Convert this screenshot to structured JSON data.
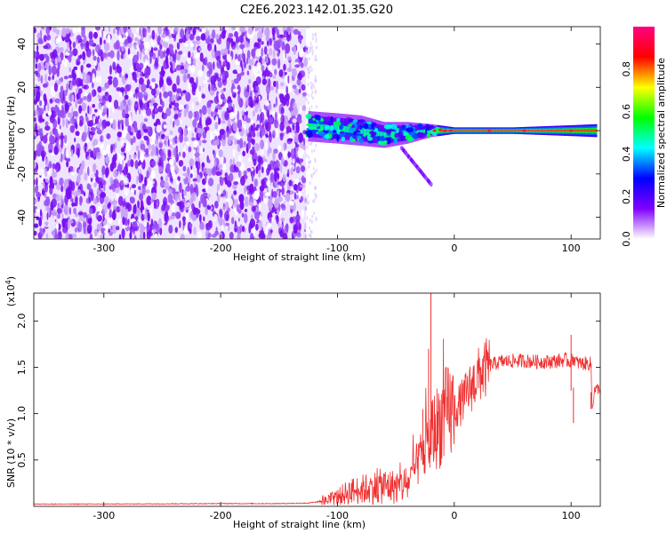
{
  "title": "C2E6.2023.142.01.35.G20",
  "chart_data": [
    {
      "type": "heatmap",
      "xlabel": "Height of straight line (km)",
      "ylabel": "Frequency (Hz)",
      "xlim": [
        -360,
        125
      ],
      "ylim": [
        -50,
        48
      ],
      "xticks": [
        -300,
        -200,
        -100,
        0,
        100
      ],
      "yticks": [
        -40,
        -20,
        0,
        20,
        40
      ],
      "noise_region": {
        "x": [
          -360,
          -127
        ],
        "y": [
          -50,
          48
        ]
      },
      "signal": [
        {
          "x": -125,
          "freq": 2,
          "halfwidth": 7
        },
        {
          "x": -100,
          "freq": 1,
          "halfwidth": 7
        },
        {
          "x": -80,
          "freq": 0,
          "halfwidth": 7
        },
        {
          "x": -60,
          "freq": -2,
          "halfwidth": 6
        },
        {
          "x": -40,
          "freq": -1,
          "halfwidth": 5
        },
        {
          "x": -20,
          "freq": 0,
          "halfwidth": 3
        },
        {
          "x": 0,
          "freq": 0,
          "halfwidth": 1.5
        },
        {
          "x": 50,
          "freq": 0,
          "halfwidth": 1.5
        },
        {
          "x": 100,
          "freq": 0,
          "halfwidth": 2.5
        },
        {
          "x": 122,
          "freq": 0,
          "halfwidth": 3
        }
      ],
      "colorbar": {
        "label": "Normalized spectral amplitude",
        "range": [
          0,
          1
        ],
        "ticks": [
          "0.0",
          "0.2",
          "0.4",
          "0.6",
          "0.8"
        ],
        "tick_values": [
          0.0,
          0.2,
          0.4,
          0.6,
          0.8
        ],
        "stops": [
          "#ffffff",
          "#8000ff",
          "#0000ff",
          "#00ffff",
          "#00ff00",
          "#ffff00",
          "#ff0000",
          "#ff0080"
        ]
      }
    },
    {
      "type": "line",
      "xlabel": "Height of straight line (km)",
      "ylabel": "SNR (10 * v/v)",
      "yscale_label": "(x10",
      "yscale_exponent": "4",
      "yscale_close": ")",
      "xlim": [
        -360,
        125
      ],
      "ylim": [
        0,
        23000
      ],
      "xticks": [
        -300,
        -200,
        -100,
        0,
        100
      ],
      "yticks": [
        5000,
        10000,
        15000,
        20000
      ],
      "ytick_labels": [
        "0.5",
        "1.0",
        "1.5",
        "2.0"
      ],
      "color": "#f03030",
      "x": [
        -360,
        -300,
        -200,
        -150,
        -125,
        -110,
        -100,
        -90,
        -80,
        -70,
        -60,
        -50,
        -40,
        -30,
        -25,
        -20,
        -18,
        -15,
        -10,
        -5,
        0,
        5,
        10,
        20,
        30,
        40,
        50,
        60,
        70,
        80,
        90,
        95,
        100,
        102,
        105,
        110,
        115,
        117,
        118,
        120,
        125
      ],
      "y": [
        250,
        250,
        300,
        300,
        350,
        600,
        1000,
        1600,
        1800,
        2000,
        2200,
        2100,
        2400,
        5000,
        6000,
        7000,
        8000,
        8500,
        9500,
        10000,
        10500,
        11000,
        12000,
        14000,
        15200,
        15600,
        15700,
        15700,
        15600,
        15600,
        15700,
        15800,
        15600,
        16000,
        15500,
        15400,
        15400,
        15400,
        10500,
        12500,
        12800
      ],
      "spikes": [
        {
          "x": -20,
          "y": 23000
        },
        {
          "x": -22,
          "y": 17000
        },
        {
          "x": -27,
          "y": 10500
        },
        {
          "x": 100,
          "y": 18500
        },
        {
          "x": 102,
          "y": 9000
        },
        {
          "x": 117,
          "y": 10500
        }
      ]
    }
  ]
}
